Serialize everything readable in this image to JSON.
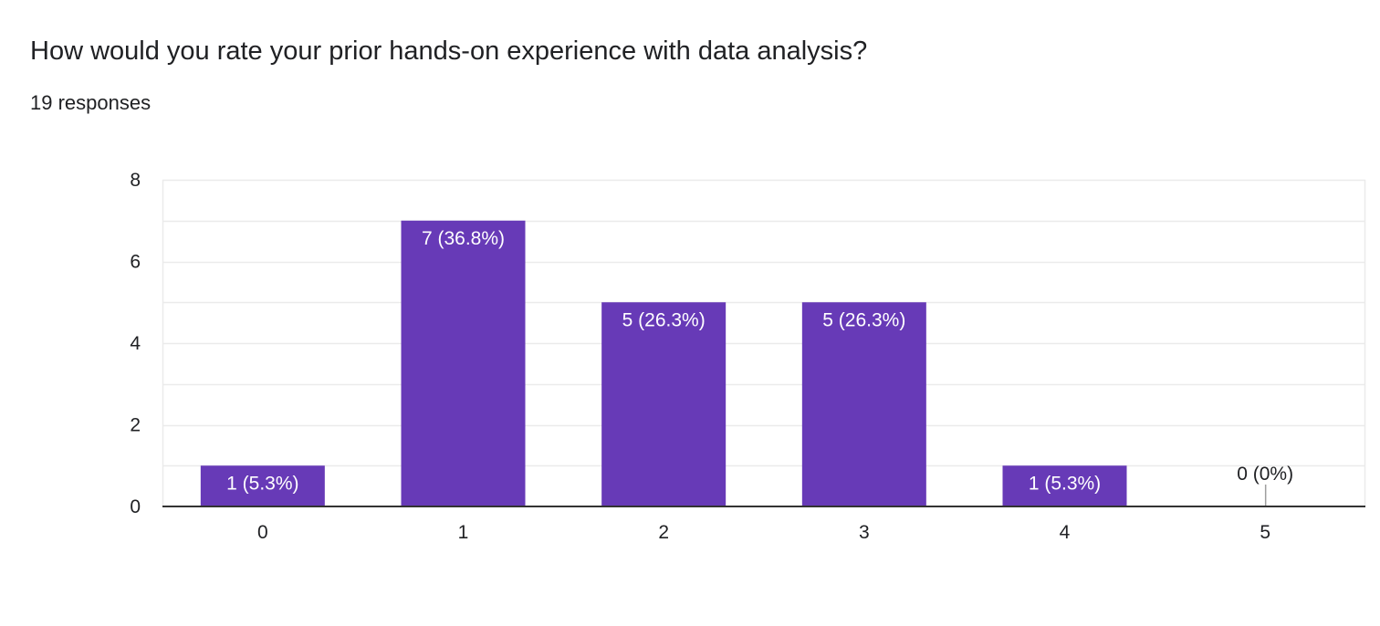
{
  "question": {
    "title": "How would you rate your prior hands-on experience with data analysis?",
    "responses": "19 responses"
  },
  "colors": {
    "bar": "#673ab7",
    "grid": "#ebebeb",
    "baseline": "#333333",
    "text": "#202124",
    "label_inside": "#ffffff"
  },
  "chart_data": {
    "type": "bar",
    "title": "How would you rate your prior hands-on experience with data analysis?",
    "subtitle": "19 responses",
    "xlabel": "",
    "ylabel": "",
    "categories": [
      "0",
      "1",
      "2",
      "3",
      "4",
      "5"
    ],
    "values": [
      1,
      7,
      5,
      5,
      1,
      0
    ],
    "data_labels": [
      "1 (5.3%)",
      "7 (36.8%)",
      "5 (26.3%)",
      "5 (26.3%)",
      "1 (5.3%)",
      "0 (0%)"
    ],
    "ylim": [
      0,
      8
    ],
    "yticks": [
      0,
      2,
      4,
      6,
      8
    ],
    "grid": true,
    "legend": "none"
  }
}
